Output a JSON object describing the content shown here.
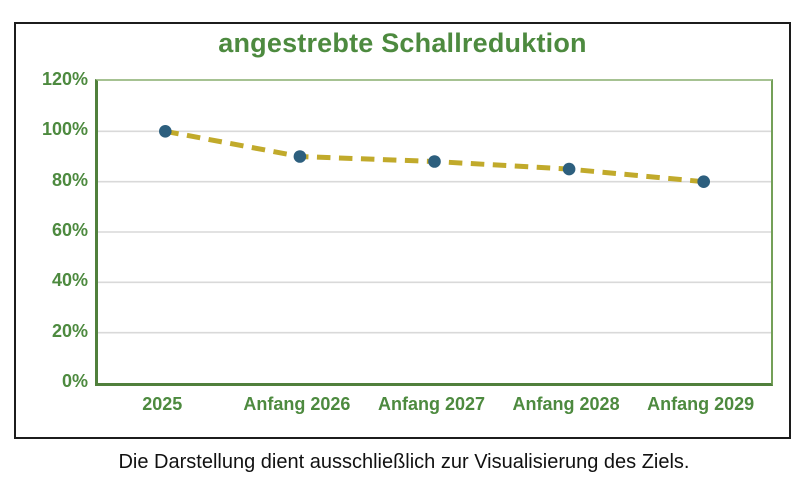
{
  "chart_data": {
    "type": "line",
    "title": "angestrebte Schallreduktion",
    "categories": [
      "2025",
      "Anfang 2026",
      "Anfang 2027",
      "Anfang 2028",
      "Anfang 2029"
    ],
    "series": [
      {
        "name": "angestrebte Schallreduktion",
        "values": [
          100,
          90,
          88,
          85,
          80
        ]
      }
    ],
    "unit": "%",
    "ylim": [
      0,
      120
    ],
    "ytick_step": 20,
    "ytick_labels": [
      "0%",
      "20%",
      "40%",
      "60%",
      "80%",
      "100%",
      "120%"
    ],
    "xlabel": "",
    "ylabel": "",
    "grid": "horizontal",
    "legend": "none",
    "line_style": "dashed",
    "marker": "circle",
    "colors": {
      "line": "#c1aa2b",
      "marker": "#2d5f7e",
      "title": "#4d8a3f",
      "tick_labels": "#4d8a3f",
      "axis": "#50803c",
      "plot_border": "#a6c292",
      "gridline": "#d9d9d9",
      "frame": "#1c1c1c",
      "background": "#ffffff"
    }
  },
  "caption": {
    "text": "Die Darstellung dient ausschließlich zur Visualisierung des Ziels."
  }
}
